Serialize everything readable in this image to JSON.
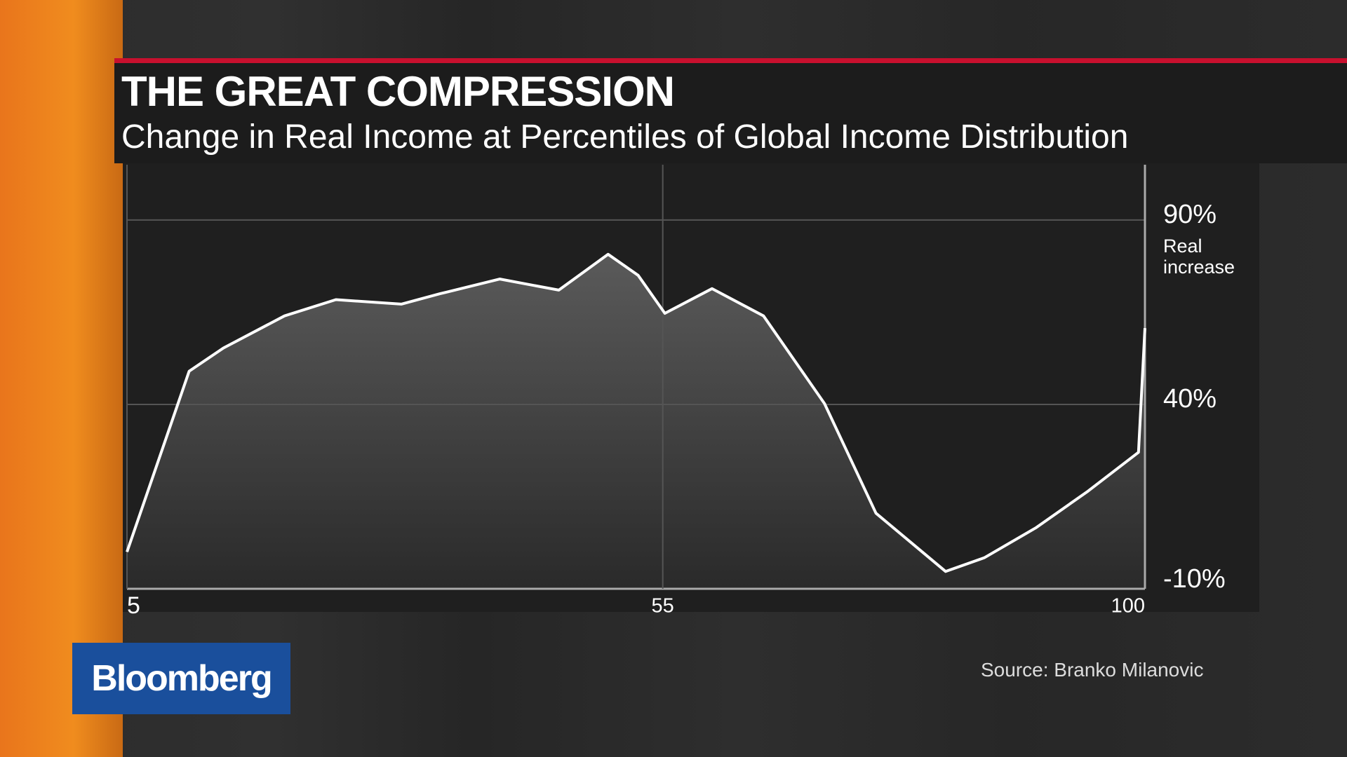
{
  "branding": "Bloomberg",
  "chart_data": {
    "type": "area",
    "title": "THE GREAT COMPRESSION",
    "subtitle": "Change in Real Income at Percentiles of Global Income Distribution",
    "y_annotation": "Real increase",
    "source": "Source: Branko Milanovic",
    "x": [
      5,
      10.8,
      14,
      19.7,
      24.5,
      30.6,
      34.2,
      39.8,
      45.3,
      49.9,
      52.7,
      55.2,
      59.6,
      64.4,
      70.1,
      74.9,
      81.4,
      85,
      89.8,
      94.7,
      99.4,
      100
    ],
    "values": [
      0,
      49,
      55.3,
      64,
      68.4,
      67.2,
      70,
      74,
      71,
      80.7,
      75,
      64.7,
      71.4,
      64,
      40.2,
      10.5,
      -5.3,
      -1.6,
      6.5,
      16.5,
      27,
      60.7
    ],
    "color": "#ffffff",
    "xlim": [
      5,
      100
    ],
    "xticks": [
      5,
      55,
      100
    ],
    "ylim": [
      -10,
      105
    ],
    "yticks": [
      {
        "value": -10,
        "label": "-10%"
      },
      {
        "value": 40,
        "label": "40%"
      },
      {
        "value": 90,
        "label": "90%"
      }
    ],
    "grid": true
  }
}
